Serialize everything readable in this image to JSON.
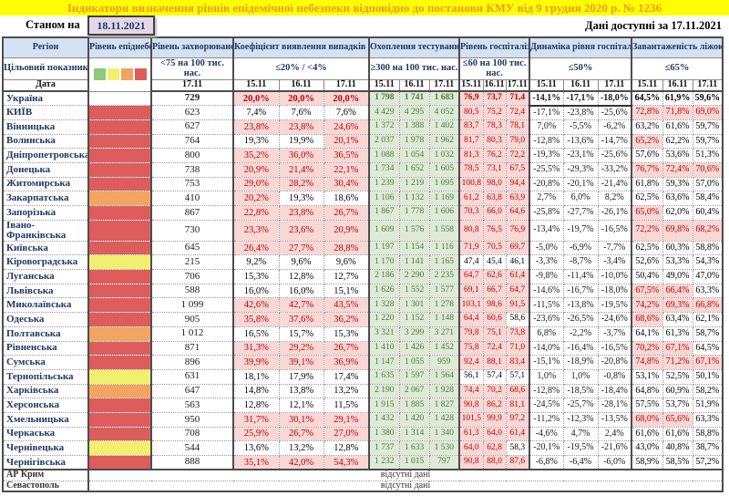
{
  "title": "Індикатори визначення рівнів епідемічної небезпеки відповідно до постанови КМУ від 9 грудня 2020 р. № 1236",
  "as_of_label": "Станом на",
  "as_of_date": "18.11.2021",
  "data_available_label": "Дані доступні за 17.11.2021",
  "no_data_text": "відсутні дані",
  "colors": {
    "danger_red": "#dd5d5c",
    "danger_orange": "#f3a45f",
    "danger_yellow": "#f3ef6e",
    "legend_green": "#8cc97c",
    "highlight_pink": "#f8d7d5",
    "highlight_green": "#ddead5",
    "header_blue": "#d3e2f0",
    "title_yellow": "#ffff00",
    "title_text_orange": "#f0991c",
    "red_text": "#c00000",
    "green_text": "#4e7a36",
    "navy_text": "#1f3864",
    "date_box_bg": "#e5d7ea"
  },
  "legend_swatches": [
    "green",
    "yellow",
    "orange",
    "red"
  ],
  "header": {
    "region": "Регіон",
    "target": "Цільовий показник",
    "date": "Дата",
    "groups": [
      {
        "label": "Рівень епіднебезпеки",
        "target": "",
        "dates": []
      },
      {
        "label": "Рівень захворюваності",
        "target": "<75 на 100 тис. нас.",
        "dates": [
          "17.11"
        ]
      },
      {
        "label": "Коефіцієнт виявлення випадків інфікування",
        "target": "≤20% / <4%",
        "dates": [
          "15.11",
          "16.11",
          "17.11"
        ]
      },
      {
        "label": "Охоплення тестуванням",
        "target": "≥300 на 100 тис. нас.",
        "dates": [
          "15.11",
          "16.11",
          "17.11"
        ]
      },
      {
        "label": "Рівень госпіталізацій",
        "target": "≤60 на 100 тис. нас.",
        "dates": [
          "15.11",
          "16.11",
          "17.11"
        ]
      },
      {
        "label": "Динаміка рівня госпіталізацій",
        "target": "≤50%",
        "dates": [
          "15.11",
          "16.11",
          "17.11"
        ]
      },
      {
        "label": "Завантаженість ліжок з киснем",
        "target": "≤65%",
        "dates": [
          "15.11",
          "16.11",
          "17.11"
        ]
      }
    ]
  },
  "rows": [
    {
      "region": "Україна",
      "danger": "none",
      "bold": true,
      "morbidity": "729",
      "coef": [
        "20,0%",
        "20,0%",
        "20,0%"
      ],
      "testing": [
        "1 798",
        "1 741",
        "1 683"
      ],
      "hosp": [
        "76,9",
        "73,7",
        "71,4"
      ],
      "dyn": [
        "-14,1%",
        "-17,1%",
        "-18,0%"
      ],
      "beds": [
        "64,5%",
        "61,9%",
        "59,6%"
      ]
    },
    {
      "region": "КИЇВ",
      "danger": "red",
      "bold": false,
      "morbidity": "623",
      "coef": [
        "7,4%",
        "7,6%",
        "7,6%"
      ],
      "testing": [
        "4 429",
        "4 295",
        "4 052"
      ],
      "hosp": [
        "80,5",
        "75,2",
        "72,4"
      ],
      "dyn": [
        "-17,1%",
        "-23,8%",
        "-25,6%"
      ],
      "beds": [
        "72,8%",
        "71,8%",
        "69,0%"
      ]
    },
    {
      "region": "Вінницька",
      "danger": "red",
      "bold": false,
      "morbidity": "627",
      "coef": [
        "23,8%",
        "23,8%",
        "24,6%"
      ],
      "testing": [
        "1 372",
        "1 388",
        "1 402"
      ],
      "hosp": [
        "83,7",
        "78,3",
        "78,1"
      ],
      "dyn": [
        "7,0%",
        "-5,5%",
        "-6,2%"
      ],
      "beds": [
        "63,2%",
        "61,6%",
        "59,7%"
      ]
    },
    {
      "region": "Волинська",
      "danger": "red",
      "bold": false,
      "morbidity": "764",
      "coef": [
        "19,3%",
        "19,9%",
        "20,1%"
      ],
      "testing": [
        "2 037",
        "1 978",
        "1 962"
      ],
      "hosp": [
        "81,7",
        "80,3",
        "79,0"
      ],
      "dyn": [
        "-12,8%",
        "-13,6%",
        "-14,7%"
      ],
      "beds": [
        "65,2%",
        "62,2%",
        "59,7%"
      ]
    },
    {
      "region": "Дніпропетровська",
      "danger": "red",
      "bold": false,
      "morbidity": "800",
      "coef": [
        "35,2%",
        "36,0%",
        "36,5%"
      ],
      "testing": [
        "1 088",
        "1 054",
        "1 032"
      ],
      "hosp": [
        "81,3",
        "76,2",
        "72,2"
      ],
      "dyn": [
        "-19,3%",
        "-23,1%",
        "-25,6%"
      ],
      "beds": [
        "57,6%",
        "53,6%",
        "51,3%"
      ]
    },
    {
      "region": "Донецька",
      "danger": "red",
      "bold": false,
      "morbidity": "738",
      "coef": [
        "20,9%",
        "21,4%",
        "22,1%"
      ],
      "testing": [
        "1 734",
        "1 652",
        "1 605"
      ],
      "hosp": [
        "78,5",
        "73,1",
        "67,5"
      ],
      "dyn": [
        "-25,5%",
        "-29,3%",
        "-33,2%"
      ],
      "beds": [
        "76,7%",
        "72,4%",
        "70,6%"
      ]
    },
    {
      "region": "Житомирська",
      "danger": "red",
      "bold": false,
      "morbidity": "753",
      "coef": [
        "29,0%",
        "28,2%",
        "30,4%"
      ],
      "testing": [
        "1 239",
        "1 219",
        "1 095"
      ],
      "hosp": [
        "100,8",
        "98,0",
        "94,4"
      ],
      "dyn": [
        "-20,8%",
        "-20,1%",
        "-21,4%"
      ],
      "beds": [
        "61,8%",
        "59,3%",
        "57,0%"
      ]
    },
    {
      "region": "Закарпатська",
      "danger": "orange",
      "bold": false,
      "morbidity": "410",
      "coef": [
        "20,2%",
        "19,3%",
        "18,6%"
      ],
      "testing": [
        "1 106",
        "1 132",
        "1 169"
      ],
      "hosp": [
        "61,2",
        "63,8",
        "63,9"
      ],
      "dyn": [
        "2,7%",
        "6,0%",
        "8,2%"
      ],
      "beds": [
        "62,5%",
        "63,6%",
        "58,4%"
      ]
    },
    {
      "region": "Запорізька",
      "danger": "red",
      "bold": false,
      "morbidity": "867",
      "coef": [
        "22,8%",
        "23,8%",
        "26,7%"
      ],
      "testing": [
        "1 867",
        "1 778",
        "1 606"
      ],
      "hosp": [
        "70,3",
        "66,0",
        "64,6"
      ],
      "dyn": [
        "-25,8%",
        "-27,7%",
        "-26,1%"
      ],
      "beds": [
        "65,0%",
        "62,0%",
        "60,4%"
      ]
    },
    {
      "region": "Івано-Франківська",
      "danger": "red",
      "bold": false,
      "morbidity": "730",
      "coef": [
        "23,3%",
        "23,6%",
        "20,9%"
      ],
      "testing": [
        "1 609",
        "1 576",
        "1 558"
      ],
      "hosp": [
        "80,8",
        "76,5",
        "76,9"
      ],
      "dyn": [
        "-13,4%",
        "-19,7%",
        "-16,5%"
      ],
      "beds": [
        "72,2%",
        "69,8%",
        "68,2%"
      ]
    },
    {
      "region": "Київська",
      "danger": "red",
      "bold": false,
      "morbidity": "645",
      "coef": [
        "26,4%",
        "27,7%",
        "28,8%"
      ],
      "testing": [
        "1 197",
        "1 154",
        "1 116"
      ],
      "hosp": [
        "71,9",
        "70,5",
        "69,7"
      ],
      "dyn": [
        "-5,0%",
        "-6,9%",
        "-7,7%"
      ],
      "beds": [
        "62,5%",
        "60,3%",
        "58,8%"
      ]
    },
    {
      "region": "Кіровоградська",
      "danger": "yellow",
      "bold": false,
      "morbidity": "215",
      "coef": [
        "9,2%",
        "9,6%",
        "9,6%"
      ],
      "testing": [
        "1 170",
        "1 141",
        "1 165"
      ],
      "hosp": [
        "47,4",
        "45,4",
        "46,1"
      ],
      "dyn": [
        "-3,3%",
        "-8,7%",
        "-3,4%"
      ],
      "beds": [
        "52,6%",
        "53,3%",
        "54,3%"
      ]
    },
    {
      "region": "Луганська",
      "danger": "red",
      "bold": false,
      "morbidity": "706",
      "coef": [
        "15,3%",
        "12,8%",
        "12,7%"
      ],
      "testing": [
        "2 186",
        "2 290",
        "2 235"
      ],
      "hosp": [
        "64,7",
        "62,6",
        "61,4"
      ],
      "dyn": [
        "-9,8%",
        "-11,4%",
        "-10,0%"
      ],
      "beds": [
        "50,4%",
        "49,0%",
        "47,0%"
      ]
    },
    {
      "region": "Львівська",
      "danger": "red",
      "bold": false,
      "morbidity": "588",
      "coef": [
        "16,0%",
        "16,0%",
        "15,1%"
      ],
      "testing": [
        "1 626",
        "1 552",
        "1 577"
      ],
      "hosp": [
        "69,1",
        "66,7",
        "64,7"
      ],
      "dyn": [
        "-14,6%",
        "-16,7%",
        "-18,0%"
      ],
      "beds": [
        "67,5%",
        "66,4%",
        "63,3%"
      ]
    },
    {
      "region": "Миколаївська",
      "danger": "red",
      "bold": false,
      "morbidity": "1 099",
      "coef": [
        "42,6%",
        "42,7%",
        "43,5%"
      ],
      "testing": [
        "1 328",
        "1 301",
        "1 278"
      ],
      "hosp": [
        "103,1",
        "98,6",
        "91,5"
      ],
      "dyn": [
        "-11,5%",
        "-13,8%",
        "-19,5%"
      ],
      "beds": [
        "74,2%",
        "69,3%",
        "66,8%"
      ]
    },
    {
      "region": "Одеська",
      "danger": "red",
      "bold": false,
      "morbidity": "905",
      "coef": [
        "35,8%",
        "37,6%",
        "36,2%"
      ],
      "testing": [
        "1 220",
        "1 152",
        "1 148"
      ],
      "hosp": [
        "64,4",
        "60,6",
        "58,6"
      ],
      "dyn": [
        "-23,6%",
        "-26,5%",
        "-24,6%"
      ],
      "beds": [
        "68,6%",
        "63,4%",
        "62,1%"
      ]
    },
    {
      "region": "Полтавська",
      "danger": "orange",
      "bold": false,
      "morbidity": "1 012",
      "coef": [
        "16,5%",
        "15,7%",
        "15,3%"
      ],
      "testing": [
        "3 321",
        "3 299",
        "3 271"
      ],
      "hosp": [
        "79,8",
        "75,1",
        "73,8"
      ],
      "dyn": [
        "6,8%",
        "-2,2%",
        "-3,7%"
      ],
      "beds": [
        "64,1%",
        "61,3%",
        "58,7%"
      ]
    },
    {
      "region": "Рівненська",
      "danger": "red",
      "bold": false,
      "morbidity": "871",
      "coef": [
        "31,3%",
        "29,2%",
        "26,7%"
      ],
      "testing": [
        "1 410",
        "1 426",
        "1 452"
      ],
      "hosp": [
        "75,8",
        "72,4",
        "71,0"
      ],
      "dyn": [
        "-14,0%",
        "-16,4%",
        "-16,5%"
      ],
      "beds": [
        "70,2%",
        "67,1%",
        "64,5%"
      ]
    },
    {
      "region": "Сумська",
      "danger": "red",
      "bold": false,
      "morbidity": "896",
      "coef": [
        "39,9%",
        "39,1%",
        "36,9%"
      ],
      "testing": [
        "1 147",
        "1 055",
        "959"
      ],
      "hosp": [
        "92,4",
        "88,1",
        "83,4"
      ],
      "dyn": [
        "-15,1%",
        "-18,9%",
        "-20,8%"
      ],
      "beds": [
        "74,8%",
        "71,2%",
        "67,1%"
      ]
    },
    {
      "region": "Тернопільська",
      "danger": "yellow",
      "bold": false,
      "morbidity": "631",
      "coef": [
        "18,1%",
        "17,9%",
        "17,4%"
      ],
      "testing": [
        "1 635",
        "1 597",
        "1 564"
      ],
      "hosp": [
        "56,1",
        "57,4",
        "57,1"
      ],
      "dyn": [
        "1,0%",
        "1,0%",
        "-0,8%"
      ],
      "beds": [
        "53,1%",
        "52,5%",
        "50,1%"
      ]
    },
    {
      "region": "Харківська",
      "danger": "orange",
      "bold": false,
      "morbidity": "647",
      "coef": [
        "14,8%",
        "13,8%",
        "13,2%"
      ],
      "testing": [
        "2 190",
        "2 067",
        "1 928"
      ],
      "hosp": [
        "74,4",
        "70,2",
        "68,6"
      ],
      "dyn": [
        "-12,8%",
        "-18,5%",
        "-18,4%"
      ],
      "beds": [
        "64,8%",
        "60,9%",
        "58,2%"
      ]
    },
    {
      "region": "Херсонська",
      "danger": "red",
      "bold": false,
      "morbidity": "563",
      "coef": [
        "12,8%",
        "12,1%",
        "11,5%"
      ],
      "testing": [
        "1 915",
        "1 885",
        "1 827"
      ],
      "hosp": [
        "90,8",
        "86,2",
        "81,1"
      ],
      "dyn": [
        "-24,5%",
        "-25,7%",
        "-28,1%"
      ],
      "beds": [
        "57,5%",
        "53,7%",
        "51,9%"
      ]
    },
    {
      "region": "Хмельницька",
      "danger": "red",
      "bold": false,
      "morbidity": "950",
      "coef": [
        "31,7%",
        "30,1%",
        "29,1%"
      ],
      "testing": [
        "1 432",
        "1 420",
        "1 428"
      ],
      "hosp": [
        "101,5",
        "99,9",
        "97,2"
      ],
      "dyn": [
        "-11,2%",
        "-12,3%",
        "-13,5%"
      ],
      "beds": [
        "68,0%",
        "65,6%",
        "63,3%"
      ]
    },
    {
      "region": "Черкаська",
      "danger": "red",
      "bold": false,
      "morbidity": "708",
      "coef": [
        "25,9%",
        "26,7%",
        "27,0%"
      ],
      "testing": [
        "1 380",
        "1 314",
        "1 340"
      ],
      "hosp": [
        "61,3",
        "64,0",
        "61,4"
      ],
      "dyn": [
        "-4,6%",
        "4,7%",
        "2,4%"
      ],
      "beds": [
        "61,6%",
        "61,6%",
        "58,8%"
      ]
    },
    {
      "region": "Чернівецька",
      "danger": "yellow",
      "bold": false,
      "morbidity": "544",
      "coef": [
        "13,6%",
        "13,2%",
        "12,8%"
      ],
      "testing": [
        "1 737",
        "1 633",
        "1 530"
      ],
      "hosp": [
        "64,0",
        "62,8",
        "58,3"
      ],
      "dyn": [
        "-20,1%",
        "-19,5%",
        "-21,6%"
      ],
      "beds": [
        "43,0%",
        "40,8%",
        "38,7%"
      ]
    },
    {
      "region": "Чернігівська",
      "danger": "red",
      "bold": false,
      "morbidity": "888",
      "coef": [
        "35,1%",
        "42,0%",
        "54,3%"
      ],
      "testing": [
        "1 232",
        "1 015",
        "797"
      ],
      "hosp": [
        "90,8",
        "88,0",
        "87,6"
      ],
      "dyn": [
        "-6,8%",
        "-6,4%",
        "-6,0%"
      ],
      "beds": [
        "58,9%",
        "58,5%",
        "57,2%"
      ]
    }
  ],
  "no_data_rows": [
    "АР Крим",
    "Севастополь"
  ]
}
